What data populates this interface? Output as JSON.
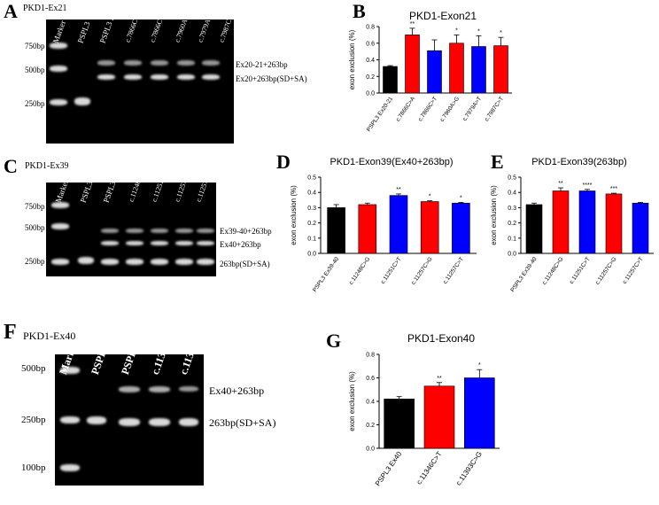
{
  "panels": {
    "A": {
      "letter": "A",
      "tag": "PKD1-Ex21",
      "lanes": [
        "Marker",
        "PSPL3",
        "PSPL3 Ex20-21",
        "c.7866C>A",
        "c.7866C>T",
        "c.7960A>G",
        "c.7979A>T",
        "c.7987C>T"
      ],
      "left_sizes": [
        "750bp",
        "500bp",
        "250bp"
      ],
      "right_labels": [
        "Ex20-21+263bp",
        "Ex20+263bp(SD+SA)"
      ]
    },
    "C": {
      "letter": "C",
      "tag": "PKD1-Ex39",
      "lanes": [
        "Marker",
        "PSPL3",
        "PSPL3 Ex39-40",
        "c.11248C>G",
        "c.11251C>T",
        "c.11257C>G",
        "c.11257C>T"
      ],
      "left_sizes": [
        "750bp",
        "500bp",
        "250bp"
      ],
      "right_labels": [
        "Ex39-40+263bp",
        "Ex40+263bp",
        "263bp(SD+SA)"
      ]
    },
    "F": {
      "letter": "F",
      "tag": "PKD1-Ex40",
      "lanes": [
        "Marker",
        "PSPL3",
        "PSPL3 Ex40",
        "c.11346C>T",
        "c.11393C>G"
      ],
      "left_sizes": [
        "500bp",
        "250bp",
        "100bp"
      ],
      "right_labels": [
        "Ex40+263bp",
        "263bp(SD+SA)"
      ]
    },
    "B": {
      "letter": "B"
    },
    "D": {
      "letter": "D"
    },
    "E": {
      "letter": "E"
    },
    "G": {
      "letter": "G"
    }
  },
  "chart_data": [
    {
      "id": "B",
      "type": "bar",
      "title": "PKD1-Exon21",
      "ylabel": "exon exclusion (%)",
      "ylim": [
        0,
        0.8
      ],
      "yticks": [
        "0.0",
        "0.2",
        "0.4",
        "0.6",
        "0.8"
      ],
      "categories": [
        "PSPL3 Ex20-21",
        "c.7866C>A",
        "c.7866C>T",
        "c.7960A>G",
        "c.7979A>T",
        "c.7987C>T"
      ],
      "values": [
        0.32,
        0.7,
        0.51,
        0.6,
        0.56,
        0.57
      ],
      "errors": [
        0.01,
        0.08,
        0.13,
        0.1,
        0.13,
        0.1
      ],
      "significance": [
        "",
        "**",
        "",
        "*",
        "*",
        "*"
      ],
      "colors": [
        "#000000",
        "#ff0000",
        "#0000ff",
        "#ff0000",
        "#0000ff",
        "#ff0000"
      ]
    },
    {
      "id": "D",
      "type": "bar",
      "title": "PKD1-Exon39(Ex40+263bp)",
      "ylabel": "exon exclusion (%)",
      "ylim": [
        0,
        0.5
      ],
      "yticks": [
        "0.0",
        "0.1",
        "0.2",
        "0.3",
        "0.4",
        "0.5"
      ],
      "categories": [
        "PSPL3 Ex39-40",
        "c.11248C>G",
        "c.11251C>T",
        "c.11257C>G",
        "c.11257C>T"
      ],
      "values": [
        0.3,
        0.32,
        0.38,
        0.34,
        0.33
      ],
      "errors": [
        0.02,
        0.01,
        0.01,
        0.005,
        0.005
      ],
      "significance": [
        "",
        "",
        "**",
        "*",
        "*"
      ],
      "colors": [
        "#000000",
        "#ff0000",
        "#0000ff",
        "#ff0000",
        "#0000ff"
      ]
    },
    {
      "id": "E",
      "type": "bar",
      "title": "PKD1-Exon39(263bp)",
      "ylabel": "exon exclusion (%)",
      "ylim": [
        0,
        0.5
      ],
      "yticks": [
        "0.0",
        "0.1",
        "0.2",
        "0.3",
        "0.4",
        "0.5"
      ],
      "categories": [
        "PSPL3 Ex39-40",
        "c.11248C>G",
        "c.11251C>T",
        "c.11257C>G",
        "c.11257C>T"
      ],
      "values": [
        0.32,
        0.41,
        0.41,
        0.39,
        0.33
      ],
      "errors": [
        0.01,
        0.02,
        0.01,
        0.005,
        0.005
      ],
      "significance": [
        "",
        "**",
        "****",
        "***",
        ""
      ],
      "colors": [
        "#000000",
        "#ff0000",
        "#0000ff",
        "#ff0000",
        "#0000ff"
      ]
    },
    {
      "id": "G",
      "type": "bar",
      "title": "PKD1-Exon40",
      "ylabel": "exon exclusion (%)",
      "ylim": [
        0,
        0.8
      ],
      "yticks": [
        "0.0",
        "0.2",
        "0.4",
        "0.6",
        "0.8"
      ],
      "categories": [
        "PSPL3 Ex40",
        "c.11346C>T",
        "c.11393C>G"
      ],
      "values": [
        0.42,
        0.53,
        0.6
      ],
      "errors": [
        0.02,
        0.03,
        0.07
      ],
      "significance": [
        "",
        "**",
        "*"
      ],
      "colors": [
        "#000000",
        "#ff0000",
        "#0000ff"
      ]
    }
  ]
}
